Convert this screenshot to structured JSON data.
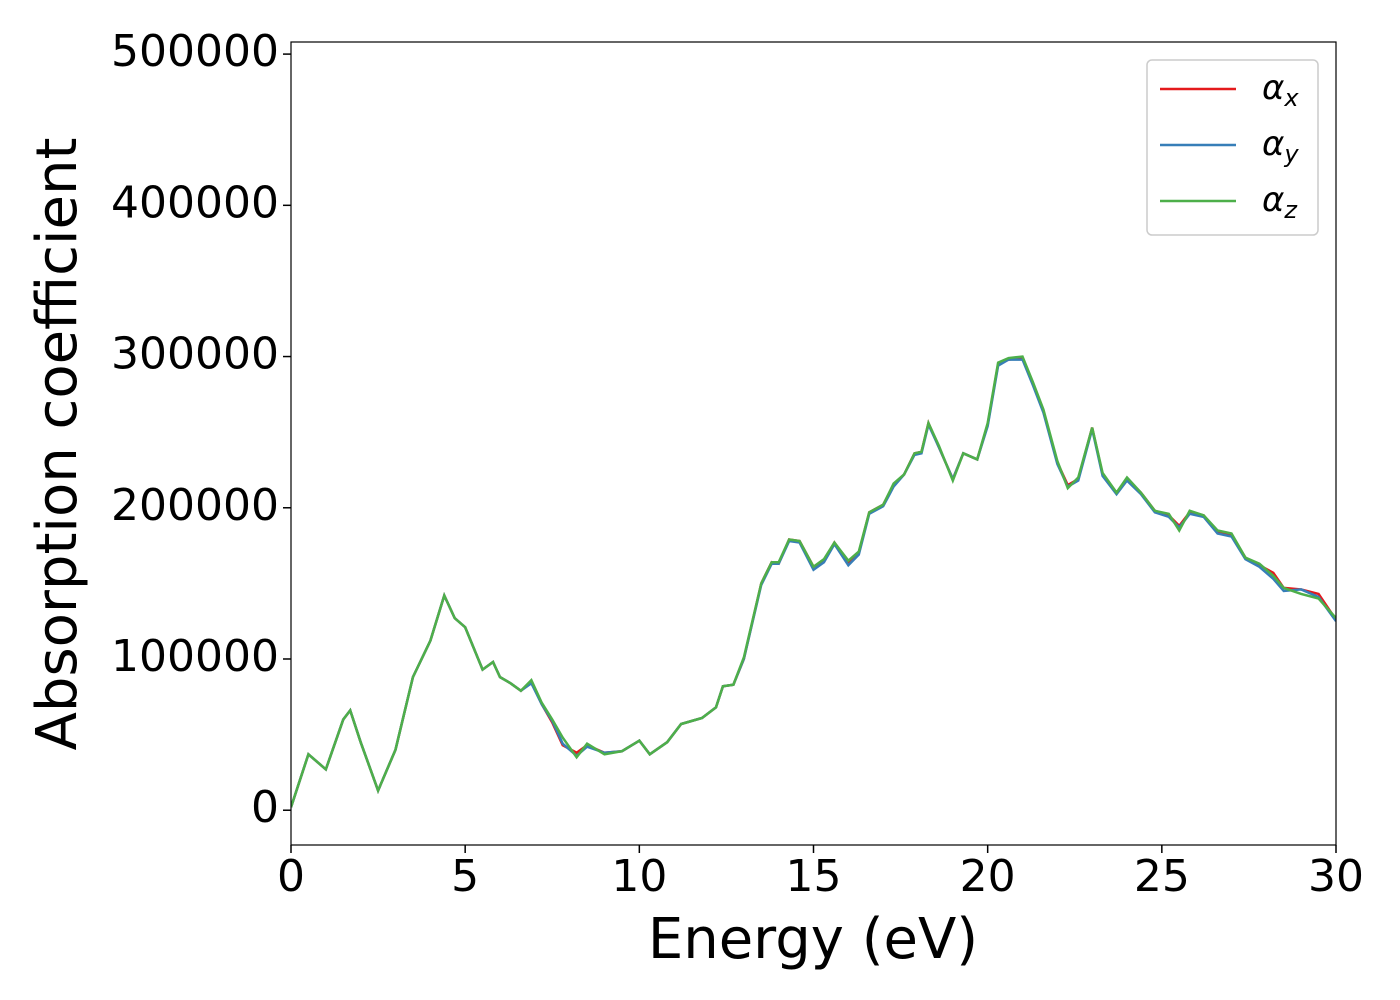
{
  "chart_data": {
    "type": "line",
    "xlabel": "Energy (eV)",
    "ylabel": "Absorption coefficient",
    "x": [
      0,
      0.5,
      1.0,
      1.5,
      1.7,
      2.0,
      2.5,
      3.0,
      3.5,
      4.0,
      4.4,
      4.7,
      5.0,
      5.5,
      5.8,
      6.0,
      6.3,
      6.6,
      6.9,
      7.2,
      7.5,
      7.8,
      8.2,
      8.5,
      9.0,
      9.5,
      10.0,
      10.3,
      10.8,
      11.2,
      11.8,
      12.2,
      12.4,
      12.7,
      13.0,
      13.5,
      13.8,
      14.0,
      14.3,
      14.6,
      15.0,
      15.3,
      15.6,
      16.0,
      16.3,
      16.6,
      17.0,
      17.3,
      17.6,
      17.9,
      18.1,
      18.3,
      18.6,
      19.0,
      19.3,
      19.7,
      20.0,
      20.3,
      20.6,
      21.0,
      21.3,
      21.6,
      22.0,
      22.3,
      22.6,
      23.0,
      23.3,
      23.7,
      24.0,
      24.4,
      24.8,
      25.2,
      25.5,
      25.8,
      26.2,
      26.6,
      27.0,
      27.4,
      27.8,
      28.2,
      28.5,
      29.0,
      29.5,
      30.0
    ],
    "series": [
      {
        "name": "αx",
        "color": "#e41a1c",
        "values": [
          2000,
          37000,
          27000,
          60000,
          66000,
          45000,
          13000,
          40000,
          88000,
          112000,
          142000,
          127000,
          121000,
          93000,
          98000,
          88000,
          84000,
          79000,
          85000,
          70000,
          58000,
          43000,
          38000,
          43000,
          38000,
          39000,
          46000,
          37000,
          45000,
          57000,
          61000,
          68000,
          82000,
          83000,
          100000,
          150000,
          164000,
          163000,
          179000,
          178000,
          161000,
          165000,
          177000,
          164000,
          170000,
          197000,
          202000,
          215000,
          222000,
          236000,
          237000,
          256000,
          240000,
          219000,
          236000,
          232000,
          255000,
          295000,
          298000,
          299000,
          282000,
          264000,
          230000,
          215000,
          219000,
          253000,
          222000,
          210000,
          219000,
          210000,
          198000,
          195000,
          188000,
          197000,
          195000,
          184000,
          182000,
          167000,
          162000,
          157000,
          147000,
          146000,
          143000,
          126000
        ]
      },
      {
        "name": "αy",
        "color": "#377eb8",
        "values": [
          2000,
          37000,
          27000,
          60000,
          66000,
          45000,
          13000,
          40000,
          88000,
          112000,
          142000,
          127000,
          121000,
          93000,
          98000,
          88000,
          84000,
          79000,
          84000,
          70000,
          59000,
          44000,
          36000,
          42000,
          38000,
          39000,
          46000,
          37000,
          45000,
          57000,
          61000,
          68000,
          82000,
          83000,
          100000,
          149000,
          163000,
          163000,
          178000,
          177000,
          159000,
          164000,
          176000,
          162000,
          169000,
          196000,
          201000,
          214000,
          222000,
          235000,
          236000,
          255000,
          240000,
          219000,
          236000,
          232000,
          254000,
          294000,
          298000,
          298000,
          281000,
          263000,
          229000,
          214000,
          218000,
          252000,
          221000,
          209000,
          218000,
          209000,
          197000,
          194000,
          187000,
          196000,
          194000,
          183000,
          181000,
          166000,
          161000,
          153000,
          145000,
          146000,
          141000,
          125000
        ]
      },
      {
        "name": "αz",
        "color": "#4daf4a",
        "values": [
          2000,
          37000,
          27000,
          60000,
          66000,
          45000,
          13000,
          40000,
          88000,
          112000,
          142000,
          127000,
          121000,
          93000,
          98000,
          88000,
          84000,
          79000,
          86000,
          71000,
          60000,
          48000,
          35000,
          44000,
          37000,
          39000,
          46000,
          37000,
          45000,
          57000,
          61000,
          68000,
          82000,
          83000,
          101000,
          150000,
          164000,
          164000,
          179000,
          178000,
          161000,
          166000,
          177000,
          165000,
          171000,
          197000,
          202000,
          216000,
          222000,
          236000,
          237000,
          256000,
          241000,
          218000,
          236000,
          232000,
          256000,
          296000,
          299000,
          300000,
          283000,
          265000,
          231000,
          213000,
          220000,
          253000,
          223000,
          210000,
          220000,
          210000,
          198000,
          196000,
          185000,
          198000,
          195000,
          185000,
          183000,
          167000,
          163000,
          155000,
          147000,
          143000,
          140000,
          127000
        ]
      }
    ],
    "xlim": [
      0,
      30
    ],
    "xticks": [
      0,
      5,
      10,
      15,
      20,
      25,
      30
    ],
    "ylim": [
      -23000,
      508000
    ],
    "yticks": [
      0,
      100000,
      200000,
      300000,
      400000,
      500000
    ],
    "legend": "upper right"
  }
}
